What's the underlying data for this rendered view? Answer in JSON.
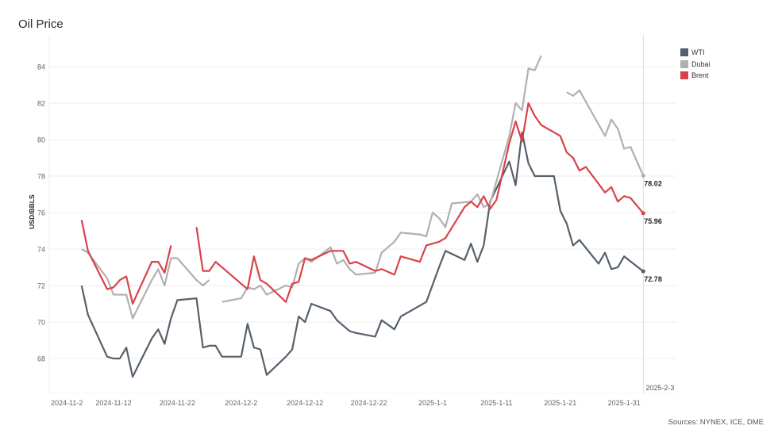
{
  "title": "Oil Price",
  "sources": "Sources: NYNEX, ICE, DME",
  "legend": [
    {
      "label": "WTI",
      "color": "#56606b"
    },
    {
      "label": "Dubai",
      "color": "#b0b0b0"
    },
    {
      "label": "Brent",
      "color": "#d9424a"
    }
  ],
  "reference_line_label": "2025-2-3",
  "end_labels": {
    "wti": "72.78",
    "dubai": "78.02",
    "brent": "75.96"
  },
  "chart_data": {
    "type": "line",
    "title": "Oil Price",
    "xlabel": "",
    "ylabel": "USD/BBLS",
    "ylim": [
      66.5,
      85.5
    ],
    "yticks": [
      68,
      70,
      72,
      74,
      76,
      78,
      80,
      82,
      84
    ],
    "xticks": [
      "2024-11-2",
      "2024-11-12",
      "2024-11-22",
      "2024-12-2",
      "2024-12-12",
      "2024-12-22",
      "2025-1-1",
      "2025-1-11",
      "2025-1-21",
      "2025-1-31"
    ],
    "grid": true,
    "legend_position": "right",
    "reference_line": {
      "x": "2025-2-3",
      "label": "2025-2-3"
    },
    "series": [
      {
        "name": "WTI",
        "color": "#56606b",
        "end_label": "72.78",
        "points": [
          [
            "2024-11-7",
            72.0
          ],
          [
            "2024-11-8",
            70.4
          ],
          [
            "2024-11-11",
            68.1
          ],
          [
            "2024-11-12",
            68.0
          ],
          [
            "2024-11-13",
            68.0
          ],
          [
            "2024-11-14",
            68.6
          ],
          [
            "2024-11-15",
            67.0
          ],
          [
            "2024-11-18",
            69.1
          ],
          [
            "2024-11-19",
            69.6
          ],
          [
            "2024-11-20",
            68.8
          ],
          [
            "2024-11-21",
            70.2
          ],
          [
            "2024-11-22",
            71.2
          ],
          [
            "2024-11-25",
            71.3
          ],
          [
            "2024-11-26",
            68.6
          ],
          [
            "2024-11-27",
            68.7
          ],
          [
            "2024-11-28",
            68.7
          ],
          [
            "2024-11-29",
            68.1
          ],
          [
            "2024-12-2",
            68.1
          ],
          [
            "2024-12-3",
            69.9
          ],
          [
            "2024-12-4",
            68.6
          ],
          [
            "2024-12-5",
            68.5
          ],
          [
            "2024-12-6",
            67.1
          ],
          [
            "2024-12-9",
            68.1
          ],
          [
            "2024-12-10",
            68.5
          ],
          [
            "2024-12-11",
            70.3
          ],
          [
            "2024-12-12",
            70.0
          ],
          [
            "2024-12-13",
            71.0
          ],
          [
            "2024-12-16",
            70.6
          ],
          [
            "2024-12-17",
            70.1
          ],
          [
            "2024-12-18",
            69.8
          ],
          [
            "2024-12-19",
            69.5
          ],
          [
            "2024-12-20",
            69.4
          ],
          [
            "2024-12-23",
            69.2
          ],
          [
            "2024-12-24",
            70.1
          ],
          [
            "2024-12-26",
            69.6
          ],
          [
            "2024-12-27",
            70.3
          ],
          [
            "2024-12-30",
            70.9
          ],
          [
            "2024-12-31",
            71.1
          ],
          [
            "2025-1-2",
            73.0
          ],
          [
            "2025-1-3",
            73.9
          ],
          [
            "2025-1-6",
            73.4
          ],
          [
            "2025-1-7",
            74.3
          ],
          [
            "2025-1-8",
            73.3
          ],
          [
            "2025-1-9",
            74.2
          ],
          [
            "2025-1-10",
            76.6
          ],
          [
            "2025-1-13",
            78.8
          ],
          [
            "2025-1-14",
            77.5
          ],
          [
            "2025-1-15",
            80.4
          ],
          [
            "2025-1-16",
            78.7
          ],
          [
            "2025-1-17",
            78.0
          ],
          [
            "2025-1-20",
            78.0
          ],
          [
            "2025-1-21",
            76.1
          ],
          [
            "2025-1-22",
            75.4
          ],
          [
            "2025-1-23",
            74.2
          ],
          [
            "2025-1-24",
            74.5
          ],
          [
            "2025-1-27",
            73.2
          ],
          [
            "2025-1-28",
            73.8
          ],
          [
            "2025-1-29",
            72.9
          ],
          [
            "2025-1-30",
            73.0
          ],
          [
            "2025-1-31",
            73.6
          ],
          [
            "2025-2-3",
            72.78
          ]
        ]
      },
      {
        "name": "Dubai",
        "color": "#b0b0b0",
        "end_label": "78.02",
        "points": [
          [
            "2024-11-7",
            74.0
          ],
          [
            "2024-11-8",
            73.8
          ],
          [
            "2024-11-11",
            72.4
          ],
          [
            "2024-11-12",
            71.5
          ],
          [
            "2024-11-13",
            71.5
          ],
          [
            "2024-11-14",
            71.5
          ],
          [
            "2024-11-15",
            70.2
          ],
          [
            "2024-11-18",
            72.3
          ],
          [
            "2024-11-19",
            72.9
          ],
          [
            "2024-11-20",
            72.0
          ],
          [
            "2024-11-21",
            73.5
          ],
          [
            "2024-11-22",
            73.5
          ],
          [
            "2024-11-25",
            72.3
          ],
          [
            "2024-11-26",
            72.0
          ],
          [
            "2024-11-27",
            72.3
          ],
          null,
          [
            "2024-11-29",
            71.1
          ],
          [
            "2024-12-2",
            71.3
          ],
          [
            "2024-12-3",
            71.9
          ],
          [
            "2024-12-4",
            71.8
          ],
          [
            "2024-12-5",
            72.0
          ],
          [
            "2024-12-6",
            71.5
          ],
          [
            "2024-12-9",
            72.0
          ],
          [
            "2024-12-10",
            71.9
          ],
          [
            "2024-12-11",
            73.2
          ],
          [
            "2024-12-12",
            73.5
          ],
          [
            "2024-12-13",
            73.3
          ],
          [
            "2024-12-16",
            74.1
          ],
          [
            "2024-12-17",
            73.2
          ],
          [
            "2024-12-18",
            73.4
          ],
          [
            "2024-12-19",
            72.9
          ],
          [
            "2024-12-20",
            72.6
          ],
          [
            "2024-12-23",
            72.7
          ],
          [
            "2024-12-24",
            73.8
          ],
          [
            "2024-12-26",
            74.4
          ],
          [
            "2024-12-27",
            74.9
          ],
          [
            "2024-12-30",
            74.8
          ],
          [
            "2024-12-31",
            74.7
          ],
          [
            "2025-1-1",
            76.0
          ],
          [
            "2025-1-2",
            75.7
          ],
          [
            "2025-1-3",
            75.2
          ],
          [
            "2025-1-4",
            76.5
          ],
          [
            "2025-1-7",
            76.6
          ],
          [
            "2025-1-8",
            77.0
          ],
          [
            "2025-1-9",
            76.3
          ],
          [
            "2025-1-10",
            76.5
          ],
          [
            "2025-1-13",
            80.2
          ],
          [
            "2025-1-14",
            82.0
          ],
          [
            "2025-1-15",
            81.6
          ],
          [
            "2025-1-16",
            83.9
          ],
          [
            "2025-1-17",
            83.8
          ],
          [
            "2025-1-18",
            84.6
          ],
          null,
          [
            "2025-1-22",
            82.6
          ],
          [
            "2025-1-23",
            82.4
          ],
          [
            "2025-1-24",
            82.7
          ],
          [
            "2025-1-28",
            80.2
          ],
          [
            "2025-1-29",
            81.1
          ],
          [
            "2025-1-30",
            80.6
          ],
          [
            "2025-1-31",
            79.5
          ],
          [
            "2025-2-1",
            79.6
          ],
          [
            "2025-2-3",
            78.02
          ]
        ]
      },
      {
        "name": "Brent",
        "color": "#d9424a",
        "end_label": "75.96",
        "points": [
          [
            "2024-11-7",
            75.6
          ],
          [
            "2024-11-8",
            73.9
          ],
          [
            "2024-11-11",
            71.8
          ],
          [
            "2024-11-12",
            71.9
          ],
          [
            "2024-11-13",
            72.3
          ],
          [
            "2024-11-14",
            72.5
          ],
          [
            "2024-11-15",
            71.0
          ],
          [
            "2024-11-18",
            73.3
          ],
          [
            "2024-11-19",
            73.3
          ],
          [
            "2024-11-20",
            72.7
          ],
          [
            "2024-11-21",
            74.2
          ],
          null,
          [
            "2024-11-25",
            75.2
          ],
          [
            "2024-11-26",
            72.8
          ],
          [
            "2024-11-27",
            72.8
          ],
          [
            "2024-11-28",
            73.3
          ],
          [
            "2024-12-3",
            71.8
          ],
          [
            "2024-12-4",
            73.6
          ],
          [
            "2024-12-5",
            72.3
          ],
          [
            "2024-12-6",
            72.1
          ],
          [
            "2024-12-9",
            71.1
          ],
          [
            "2024-12-10",
            72.1
          ],
          [
            "2024-12-11",
            72.2
          ],
          [
            "2024-12-12",
            73.5
          ],
          [
            "2024-12-13",
            73.4
          ],
          [
            "2024-12-16",
            73.9
          ],
          [
            "2024-12-17",
            73.9
          ],
          [
            "2024-12-18",
            73.9
          ],
          [
            "2024-12-19",
            73.2
          ],
          [
            "2024-12-20",
            73.3
          ],
          [
            "2024-12-23",
            72.8
          ],
          [
            "2024-12-24",
            72.9
          ],
          [
            "2024-12-26",
            72.6
          ],
          [
            "2024-12-27",
            73.6
          ],
          [
            "2024-12-30",
            73.3
          ],
          [
            "2024-12-31",
            74.2
          ],
          [
            "2025-1-2",
            74.4
          ],
          [
            "2025-1-3",
            74.6
          ],
          [
            "2025-1-6",
            76.3
          ],
          [
            "2025-1-7",
            76.6
          ],
          [
            "2025-1-8",
            76.3
          ],
          [
            "2025-1-9",
            76.9
          ],
          [
            "2025-1-10",
            76.2
          ],
          [
            "2025-1-11",
            76.7
          ],
          [
            "2025-1-13",
            79.8
          ],
          [
            "2025-1-14",
            81.0
          ],
          [
            "2025-1-15",
            79.9
          ],
          [
            "2025-1-16",
            82.0
          ],
          [
            "2025-1-17",
            81.3
          ],
          [
            "2025-1-18",
            80.8
          ],
          [
            "2025-1-21",
            80.2
          ],
          [
            "2025-1-22",
            79.3
          ],
          [
            "2025-1-23",
            79.0
          ],
          [
            "2025-1-24",
            78.3
          ],
          [
            "2025-1-25",
            78.5
          ],
          [
            "2025-1-28",
            77.1
          ],
          [
            "2025-1-29",
            77.4
          ],
          [
            "2025-1-30",
            76.6
          ],
          [
            "2025-1-31",
            76.9
          ],
          [
            "2025-2-1",
            76.8
          ],
          [
            "2025-2-3",
            75.96
          ]
        ]
      }
    ]
  }
}
